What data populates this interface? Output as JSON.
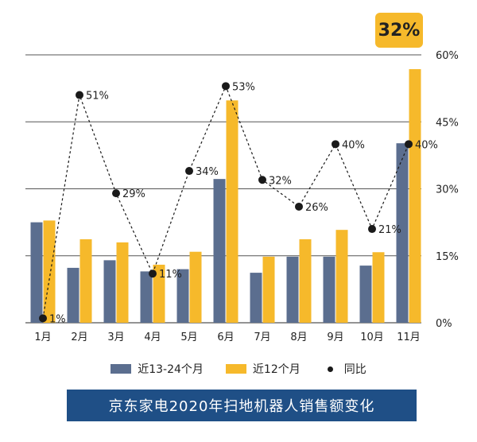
{
  "chart_data": {
    "type": "bar",
    "title": "京东家电2020年扫地机器人销售额变化",
    "categories": [
      "1月",
      "2月",
      "3月",
      "4月",
      "5月",
      "6月",
      "7月",
      "8月",
      "9月",
      "10月",
      "11月"
    ],
    "series": [
      {
        "name": "近13-24个月",
        "color": "#5b6e8f",
        "values": [
          225,
          123,
          140,
          115,
          120,
          322,
          112,
          148,
          148,
          128,
          402
        ]
      },
      {
        "name": "近12个月",
        "color": "#f6b92b",
        "values": [
          229,
          187,
          180,
          130,
          159,
          498,
          148,
          187,
          208,
          158,
          568
        ]
      }
    ],
    "line_series": {
      "name": "同比",
      "color": "#1a1a1a",
      "values": [
        1,
        51,
        29,
        11,
        34,
        53,
        32,
        26,
        40,
        21,
        40
      ],
      "labels": [
        "1%",
        "51%",
        "29%",
        "11%",
        "34%",
        "53%",
        "32%",
        "26%",
        "40%",
        "21%",
        "40%"
      ],
      "axis": "right"
    },
    "left_ylim": [
      0,
      600
    ],
    "right_ylim": [
      0,
      60
    ],
    "right_ticks": [
      "0%",
      "15%",
      "30%",
      "45%",
      "60%"
    ],
    "highlight_label": "32%",
    "legend_position": "bottom"
  }
}
